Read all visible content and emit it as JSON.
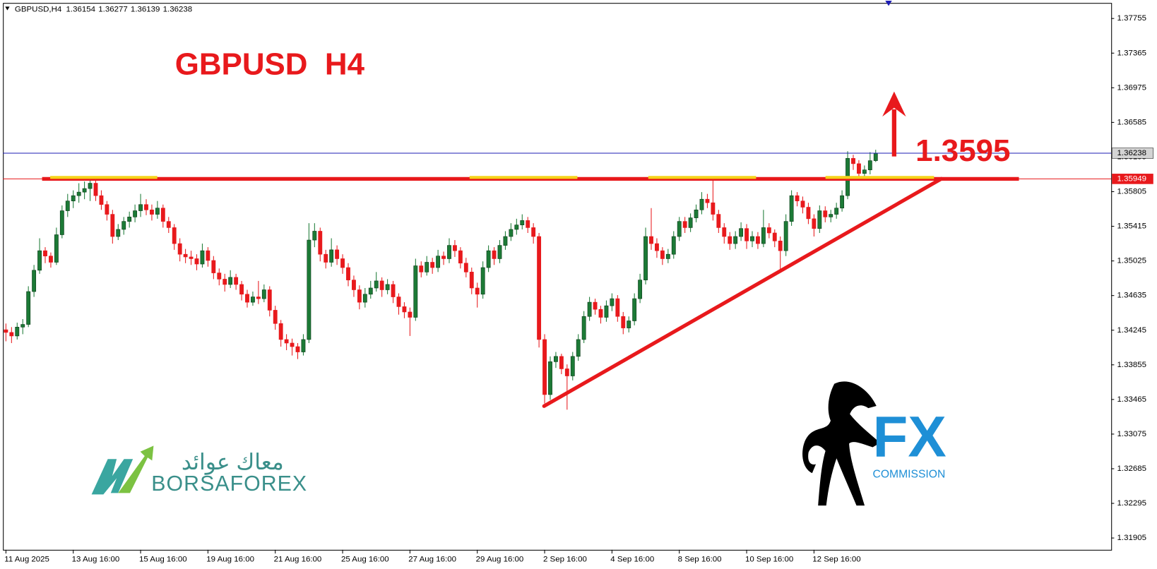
{
  "chart_data": {
    "type": "candlestick",
    "symbol": "GBPUSD,H4",
    "title": "GBPUSD  H4",
    "target_label": "1.3595",
    "bull_color": "#1c7a36",
    "bear_color": "#e8191c",
    "ylim": [
      1.31772,
      1.3793
    ],
    "xlim": [
      -0.53,
      196.97
    ],
    "yticks": [
      1.37755,
      1.37365,
      1.36975,
      1.36585,
      1.36195,
      1.35805,
      1.35415,
      1.35025,
      1.34635,
      1.34245,
      1.33855,
      1.33465,
      1.33075,
      1.32685,
      1.32295,
      1.31905
    ],
    "xticks": [
      {
        "value": 0,
        "label": "11 Aug 2025"
      },
      {
        "value": 12,
        "label": "13 Aug 16:00"
      },
      {
        "value": 24,
        "label": "15 Aug 16:00"
      },
      {
        "value": 36,
        "label": "19 Aug 16:00"
      },
      {
        "value": 48,
        "label": "21 Aug 16:00"
      },
      {
        "value": 60,
        "label": "25 Aug 16:00"
      },
      {
        "value": 72,
        "label": "27 Aug 16:00"
      },
      {
        "value": 84,
        "label": "29 Aug 16:00"
      },
      {
        "value": 96,
        "label": "2 Sep 16:00"
      },
      {
        "value": 108,
        "label": "4 Sep 16:00"
      },
      {
        "value": 120,
        "label": "8 Sep 16:00"
      },
      {
        "value": 132,
        "label": "10 Sep 16:00"
      },
      {
        "value": 144,
        "label": "12 Sep 16:00"
      }
    ],
    "level": 1.35949,
    "level_color": "#e8191c",
    "price_line_color": "#1c1cb4",
    "trendline": {
      "x": [
        95.9,
        166.7
      ],
      "y": [
        1.3339,
        1.3595
      ]
    },
    "candles": [
      [
        1.3425,
        1.3432,
        1.3412,
        1.3422
      ],
      [
        1.3422,
        1.3428,
        1.341,
        1.3418
      ],
      [
        1.3418,
        1.3433,
        1.3414,
        1.3428
      ],
      [
        1.3428,
        1.3437,
        1.342,
        1.3431
      ],
      [
        1.3431,
        1.3474,
        1.3428,
        1.3468
      ],
      [
        1.3468,
        1.3498,
        1.3462,
        1.3492
      ],
      [
        1.3492,
        1.3528,
        1.3488,
        1.3514
      ],
      [
        1.3514,
        1.3518,
        1.35,
        1.3508
      ],
      [
        1.3508,
        1.3512,
        1.3495,
        1.3501
      ],
      [
        1.3501,
        1.354,
        1.3498,
        1.3532
      ],
      [
        1.3532,
        1.3565,
        1.3528,
        1.3559
      ],
      [
        1.3559,
        1.3578,
        1.3552,
        1.357
      ],
      [
        1.357,
        1.3582,
        1.3562,
        1.3576
      ],
      [
        1.3576,
        1.359,
        1.3568,
        1.358
      ],
      [
        1.358,
        1.3592,
        1.3572,
        1.3584
      ],
      [
        1.3584,
        1.3598,
        1.357,
        1.359
      ],
      [
        1.359,
        1.3594,
        1.357,
        1.3576
      ],
      [
        1.3576,
        1.3582,
        1.356,
        1.3566
      ],
      [
        1.3566,
        1.357,
        1.3548,
        1.3555
      ],
      [
        1.3555,
        1.356,
        1.3522,
        1.353
      ],
      [
        1.353,
        1.3544,
        1.3526,
        1.3538
      ],
      [
        1.3538,
        1.3552,
        1.3532,
        1.3547
      ],
      [
        1.3547,
        1.3558,
        1.354,
        1.3552
      ],
      [
        1.3552,
        1.3566,
        1.3546,
        1.3559
      ],
      [
        1.3559,
        1.3578,
        1.3552,
        1.3566
      ],
      [
        1.3566,
        1.3572,
        1.3554,
        1.356
      ],
      [
        1.356,
        1.3566,
        1.3548,
        1.3555
      ],
      [
        1.3555,
        1.357,
        1.355,
        1.3562
      ],
      [
        1.3562,
        1.3566,
        1.354,
        1.3547
      ],
      [
        1.3547,
        1.3552,
        1.3534,
        1.354
      ],
      [
        1.354,
        1.3544,
        1.3515,
        1.3522
      ],
      [
        1.3522,
        1.3528,
        1.3502,
        1.351
      ],
      [
        1.351,
        1.3516,
        1.35,
        1.3507
      ],
      [
        1.3507,
        1.3514,
        1.3498,
        1.3505
      ],
      [
        1.3505,
        1.351,
        1.3492,
        1.3499
      ],
      [
        1.3499,
        1.3522,
        1.3495,
        1.3514
      ],
      [
        1.3514,
        1.3518,
        1.3496,
        1.3503
      ],
      [
        1.3503,
        1.3508,
        1.3482,
        1.3489
      ],
      [
        1.3489,
        1.3494,
        1.3475,
        1.3482
      ],
      [
        1.3482,
        1.3488,
        1.3468,
        1.3476
      ],
      [
        1.3476,
        1.3492,
        1.3472,
        1.3484
      ],
      [
        1.3484,
        1.3488,
        1.347,
        1.3476
      ],
      [
        1.3476,
        1.348,
        1.3458,
        1.3465
      ],
      [
        1.3465,
        1.347,
        1.345,
        1.3456
      ],
      [
        1.3456,
        1.3468,
        1.3452,
        1.3462
      ],
      [
        1.3462,
        1.348,
        1.3454,
        1.346
      ],
      [
        1.346,
        1.3476,
        1.3456,
        1.347
      ],
      [
        1.347,
        1.3474,
        1.344,
        1.3447
      ],
      [
        1.3447,
        1.3452,
        1.3425,
        1.3432
      ],
      [
        1.3432,
        1.3436,
        1.3406,
        1.3414
      ],
      [
        1.3414,
        1.342,
        1.3402,
        1.341
      ],
      [
        1.341,
        1.3415,
        1.3396,
        1.3406
      ],
      [
        1.3406,
        1.341,
        1.3392,
        1.34
      ],
      [
        1.34,
        1.342,
        1.3396,
        1.3414
      ],
      [
        1.3414,
        1.3545,
        1.341,
        1.3526
      ],
      [
        1.3526,
        1.3545,
        1.3518,
        1.3536
      ],
      [
        1.3536,
        1.354,
        1.3502,
        1.351
      ],
      [
        1.351,
        1.3515,
        1.3494,
        1.3501
      ],
      [
        1.3501,
        1.3528,
        1.3496,
        1.3515
      ],
      [
        1.3515,
        1.352,
        1.3498,
        1.3505
      ],
      [
        1.3505,
        1.351,
        1.3488,
        1.3495
      ],
      [
        1.3495,
        1.35,
        1.3474,
        1.3481
      ],
      [
        1.3481,
        1.3486,
        1.3462,
        1.347
      ],
      [
        1.347,
        1.3475,
        1.3448,
        1.3456
      ],
      [
        1.3456,
        1.3472,
        1.345,
        1.3465
      ],
      [
        1.3465,
        1.348,
        1.346,
        1.3472
      ],
      [
        1.3472,
        1.349,
        1.3468,
        1.348
      ],
      [
        1.348,
        1.3484,
        1.3462,
        1.347
      ],
      [
        1.347,
        1.3482,
        1.3465,
        1.3476
      ],
      [
        1.3476,
        1.348,
        1.3455,
        1.3462
      ],
      [
        1.3462,
        1.3466,
        1.3442,
        1.3451
      ],
      [
        1.3451,
        1.3456,
        1.3438,
        1.3445
      ],
      [
        1.3445,
        1.345,
        1.3418,
        1.3439
      ],
      [
        1.3439,
        1.3505,
        1.3435,
        1.3497
      ],
      [
        1.3497,
        1.3502,
        1.3484,
        1.349
      ],
      [
        1.349,
        1.3508,
        1.3486,
        1.3501
      ],
      [
        1.3501,
        1.3506,
        1.3488,
        1.3495
      ],
      [
        1.3495,
        1.3515,
        1.349,
        1.3508
      ],
      [
        1.3508,
        1.3513,
        1.3498,
        1.3505
      ],
      [
        1.3505,
        1.3528,
        1.35,
        1.352
      ],
      [
        1.352,
        1.3526,
        1.3507,
        1.3514
      ],
      [
        1.3514,
        1.3518,
        1.3494,
        1.35
      ],
      [
        1.35,
        1.3506,
        1.3484,
        1.349
      ],
      [
        1.349,
        1.3495,
        1.3465,
        1.3472
      ],
      [
        1.3472,
        1.3478,
        1.345,
        1.3465
      ],
      [
        1.3465,
        1.3502,
        1.346,
        1.3495
      ],
      [
        1.3495,
        1.352,
        1.349,
        1.3514
      ],
      [
        1.3514,
        1.3518,
        1.3498,
        1.3505
      ],
      [
        1.3505,
        1.3526,
        1.35,
        1.352
      ],
      [
        1.352,
        1.3536,
        1.3515,
        1.353
      ],
      [
        1.353,
        1.3545,
        1.3525,
        1.3538
      ],
      [
        1.3538,
        1.355,
        1.3532,
        1.3543
      ],
      [
        1.3543,
        1.3555,
        1.3538,
        1.3548
      ],
      [
        1.3548,
        1.3552,
        1.3534,
        1.354
      ],
      [
        1.354,
        1.3545,
        1.3522,
        1.353
      ],
      [
        1.353,
        1.3534,
        1.3405,
        1.3414
      ],
      [
        1.3414,
        1.342,
        1.3342,
        1.3352
      ],
      [
        1.3352,
        1.3395,
        1.3346,
        1.3389
      ],
      [
        1.3389,
        1.34,
        1.3382,
        1.3395
      ],
      [
        1.3395,
        1.3398,
        1.3375,
        1.3381
      ],
      [
        1.3381,
        1.3386,
        1.3335,
        1.3373
      ],
      [
        1.3373,
        1.34,
        1.3368,
        1.3395
      ],
      [
        1.3395,
        1.342,
        1.339,
        1.3414
      ],
      [
        1.3414,
        1.3446,
        1.341,
        1.344
      ],
      [
        1.344,
        1.3462,
        1.3435,
        1.3456
      ],
      [
        1.3456,
        1.346,
        1.3442,
        1.3448
      ],
      [
        1.3448,
        1.3452,
        1.3432,
        1.3439
      ],
      [
        1.3439,
        1.3458,
        1.3434,
        1.3452
      ],
      [
        1.3452,
        1.3466,
        1.3446,
        1.346
      ],
      [
        1.346,
        1.3464,
        1.3434,
        1.344
      ],
      [
        1.344,
        1.3445,
        1.342,
        1.3427
      ],
      [
        1.3427,
        1.344,
        1.3422,
        1.3435
      ],
      [
        1.3435,
        1.3466,
        1.343,
        1.346
      ],
      [
        1.346,
        1.3488,
        1.3455,
        1.3481
      ],
      [
        1.3481,
        1.354,
        1.3476,
        1.353
      ],
      [
        1.353,
        1.3562,
        1.3515,
        1.3522
      ],
      [
        1.3522,
        1.3528,
        1.3506,
        1.3514
      ],
      [
        1.3514,
        1.3518,
        1.3498,
        1.3505
      ],
      [
        1.3505,
        1.3516,
        1.35,
        1.351
      ],
      [
        1.351,
        1.3536,
        1.3505,
        1.353
      ],
      [
        1.353,
        1.3552,
        1.3525,
        1.3547
      ],
      [
        1.3547,
        1.3552,
        1.3534,
        1.354
      ],
      [
        1.354,
        1.3556,
        1.3535,
        1.3551
      ],
      [
        1.3551,
        1.3566,
        1.3546,
        1.356
      ],
      [
        1.356,
        1.358,
        1.3555,
        1.3572
      ],
      [
        1.3572,
        1.3578,
        1.3562,
        1.3568
      ],
      [
        1.3568,
        1.3595,
        1.3548,
        1.3555
      ],
      [
        1.3555,
        1.356,
        1.3534,
        1.354
      ],
      [
        1.354,
        1.3545,
        1.3522,
        1.353
      ],
      [
        1.353,
        1.3535,
        1.3515,
        1.3522
      ],
      [
        1.3522,
        1.3536,
        1.3516,
        1.353
      ],
      [
        1.353,
        1.3546,
        1.3525,
        1.3539
      ],
      [
        1.3539,
        1.3544,
        1.3516,
        1.3525
      ],
      [
        1.3525,
        1.3536,
        1.3518,
        1.353
      ],
      [
        1.353,
        1.3535,
        1.3516,
        1.3522
      ],
      [
        1.3522,
        1.356,
        1.3518,
        1.354
      ],
      [
        1.354,
        1.3545,
        1.3528,
        1.3534
      ],
      [
        1.3534,
        1.3538,
        1.3518,
        1.3525
      ],
      [
        1.3525,
        1.353,
        1.349,
        1.3514
      ],
      [
        1.3514,
        1.3555,
        1.3508,
        1.3547
      ],
      [
        1.3547,
        1.3582,
        1.3542,
        1.3576
      ],
      [
        1.3576,
        1.358,
        1.3564,
        1.357
      ],
      [
        1.357,
        1.3575,
        1.3556,
        1.3563
      ],
      [
        1.3563,
        1.3568,
        1.3544,
        1.355
      ],
      [
        1.355,
        1.3555,
        1.353,
        1.3539
      ],
      [
        1.3539,
        1.3565,
        1.3534,
        1.3559
      ],
      [
        1.3559,
        1.3564,
        1.3546,
        1.3552
      ],
      [
        1.3552,
        1.356,
        1.3546,
        1.3555
      ],
      [
        1.3555,
        1.3568,
        1.355,
        1.3562
      ],
      [
        1.3562,
        1.3582,
        1.3558,
        1.3576
      ],
      [
        1.3576,
        1.3626,
        1.3572,
        1.3618
      ],
      [
        1.3618,
        1.3622,
        1.3605,
        1.3612
      ],
      [
        1.3612,
        1.3616,
        1.3596,
        1.3601
      ],
      [
        1.3601,
        1.361,
        1.3597,
        1.3605
      ],
      [
        1.3605,
        1.3625,
        1.36,
        1.36154
      ],
      [
        1.36154,
        1.36277,
        1.36139,
        1.36238
      ]
    ]
  },
  "logos": {
    "borsaforex_arabic": "معاك عوائد",
    "borsaforex": "BORSAFOREX",
    "fx": "FX",
    "commission": "COMMISSION"
  }
}
